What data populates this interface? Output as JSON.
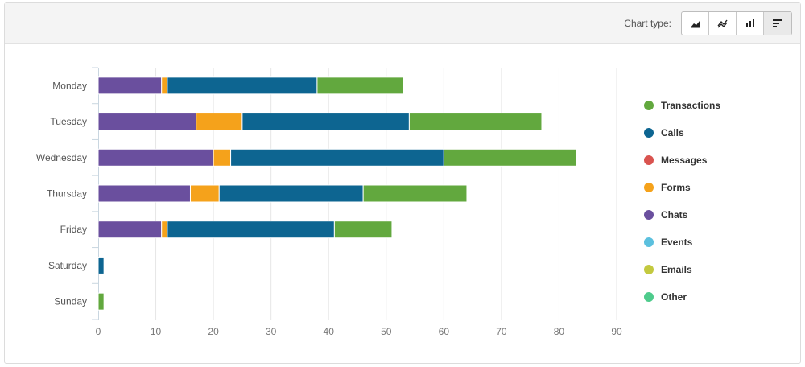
{
  "toolbar": {
    "chart_type_label": "Chart type:",
    "buttons": [
      {
        "name": "area-chart-icon",
        "active": false
      },
      {
        "name": "line-chart-icon",
        "active": false
      },
      {
        "name": "column-chart-icon",
        "active": false
      },
      {
        "name": "bar-chart-icon",
        "active": true
      }
    ]
  },
  "chart_data": {
    "type": "bar",
    "orientation": "horizontal",
    "stacked": true,
    "categories": [
      "Monday",
      "Tuesday",
      "Wednesday",
      "Thursday",
      "Friday",
      "Saturday",
      "Sunday"
    ],
    "series": [
      {
        "name": "Chats",
        "color": "#6a4f9e",
        "values": [
          11,
          17,
          20,
          16,
          11,
          0,
          0
        ]
      },
      {
        "name": "Forms",
        "color": "#f5a21b",
        "values": [
          1,
          8,
          3,
          5,
          1,
          0,
          0
        ]
      },
      {
        "name": "Calls",
        "color": "#0d6591",
        "values": [
          26,
          29,
          37,
          25,
          29,
          1,
          0
        ]
      },
      {
        "name": "Transactions",
        "color": "#62a83e",
        "values": [
          15,
          23,
          23,
          18,
          10,
          0,
          1
        ]
      }
    ],
    "xlim": [
      0,
      90
    ],
    "xticks": [
      0,
      10,
      20,
      30,
      40,
      50,
      60,
      70,
      80,
      90
    ],
    "grid": true,
    "legend": {
      "placement": "right",
      "entries": [
        {
          "name": "Transactions",
          "color": "#62a83e"
        },
        {
          "name": "Calls",
          "color": "#0d6591"
        },
        {
          "name": "Messages",
          "color": "#d9534f"
        },
        {
          "name": "Forms",
          "color": "#f5a21b"
        },
        {
          "name": "Chats",
          "color": "#6a4f9e"
        },
        {
          "name": "Events",
          "color": "#5bc0de"
        },
        {
          "name": "Emails",
          "color": "#c3c93f"
        },
        {
          "name": "Other",
          "color": "#4ecb8c"
        }
      ]
    }
  }
}
